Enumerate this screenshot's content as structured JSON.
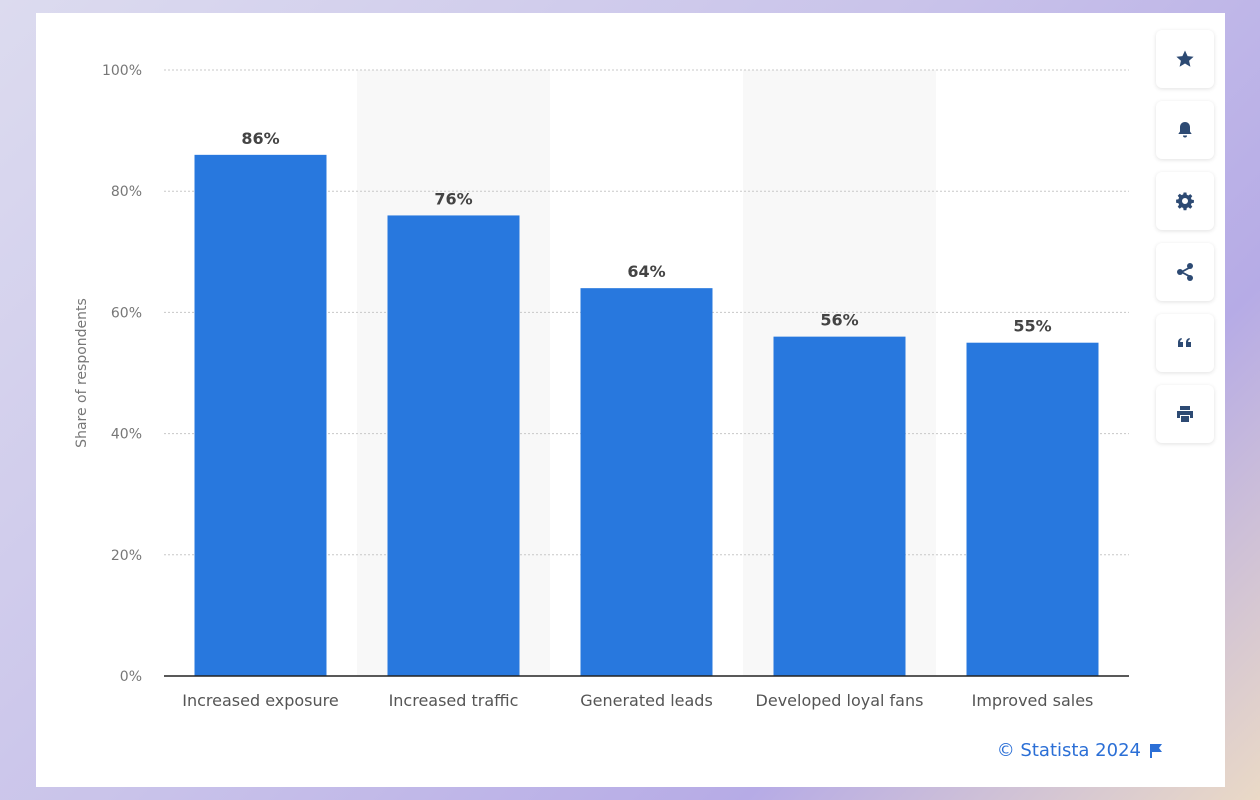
{
  "chart_data": {
    "type": "bar",
    "categories": [
      "Increased exposure",
      "Increased traffic",
      "Generated leads",
      "Developed loyal fans",
      "Improved sales"
    ],
    "values": [
      86,
      76,
      64,
      56,
      55
    ],
    "value_labels": [
      "86%",
      "76%",
      "64%",
      "56%",
      "55%"
    ],
    "ylabel": "Share of respondents",
    "xlabel": "",
    "ylim": [
      0,
      100
    ],
    "yticks": [
      0,
      20,
      40,
      60,
      80,
      100
    ],
    "ytick_labels": [
      "0%",
      "20%",
      "40%",
      "60%",
      "80%",
      "100%"
    ],
    "grid": true,
    "bar_color": "#2878de",
    "band_color": "#f8f8f8"
  },
  "credit": {
    "text": "© Statista 2024"
  },
  "toolbar": {
    "items": [
      {
        "name": "favorite",
        "icon": "star-icon"
      },
      {
        "name": "notification",
        "icon": "bell-icon"
      },
      {
        "name": "settings",
        "icon": "gear-icon"
      },
      {
        "name": "share",
        "icon": "share-icon"
      },
      {
        "name": "cite",
        "icon": "quote-icon"
      },
      {
        "name": "print",
        "icon": "print-icon"
      }
    ]
  }
}
